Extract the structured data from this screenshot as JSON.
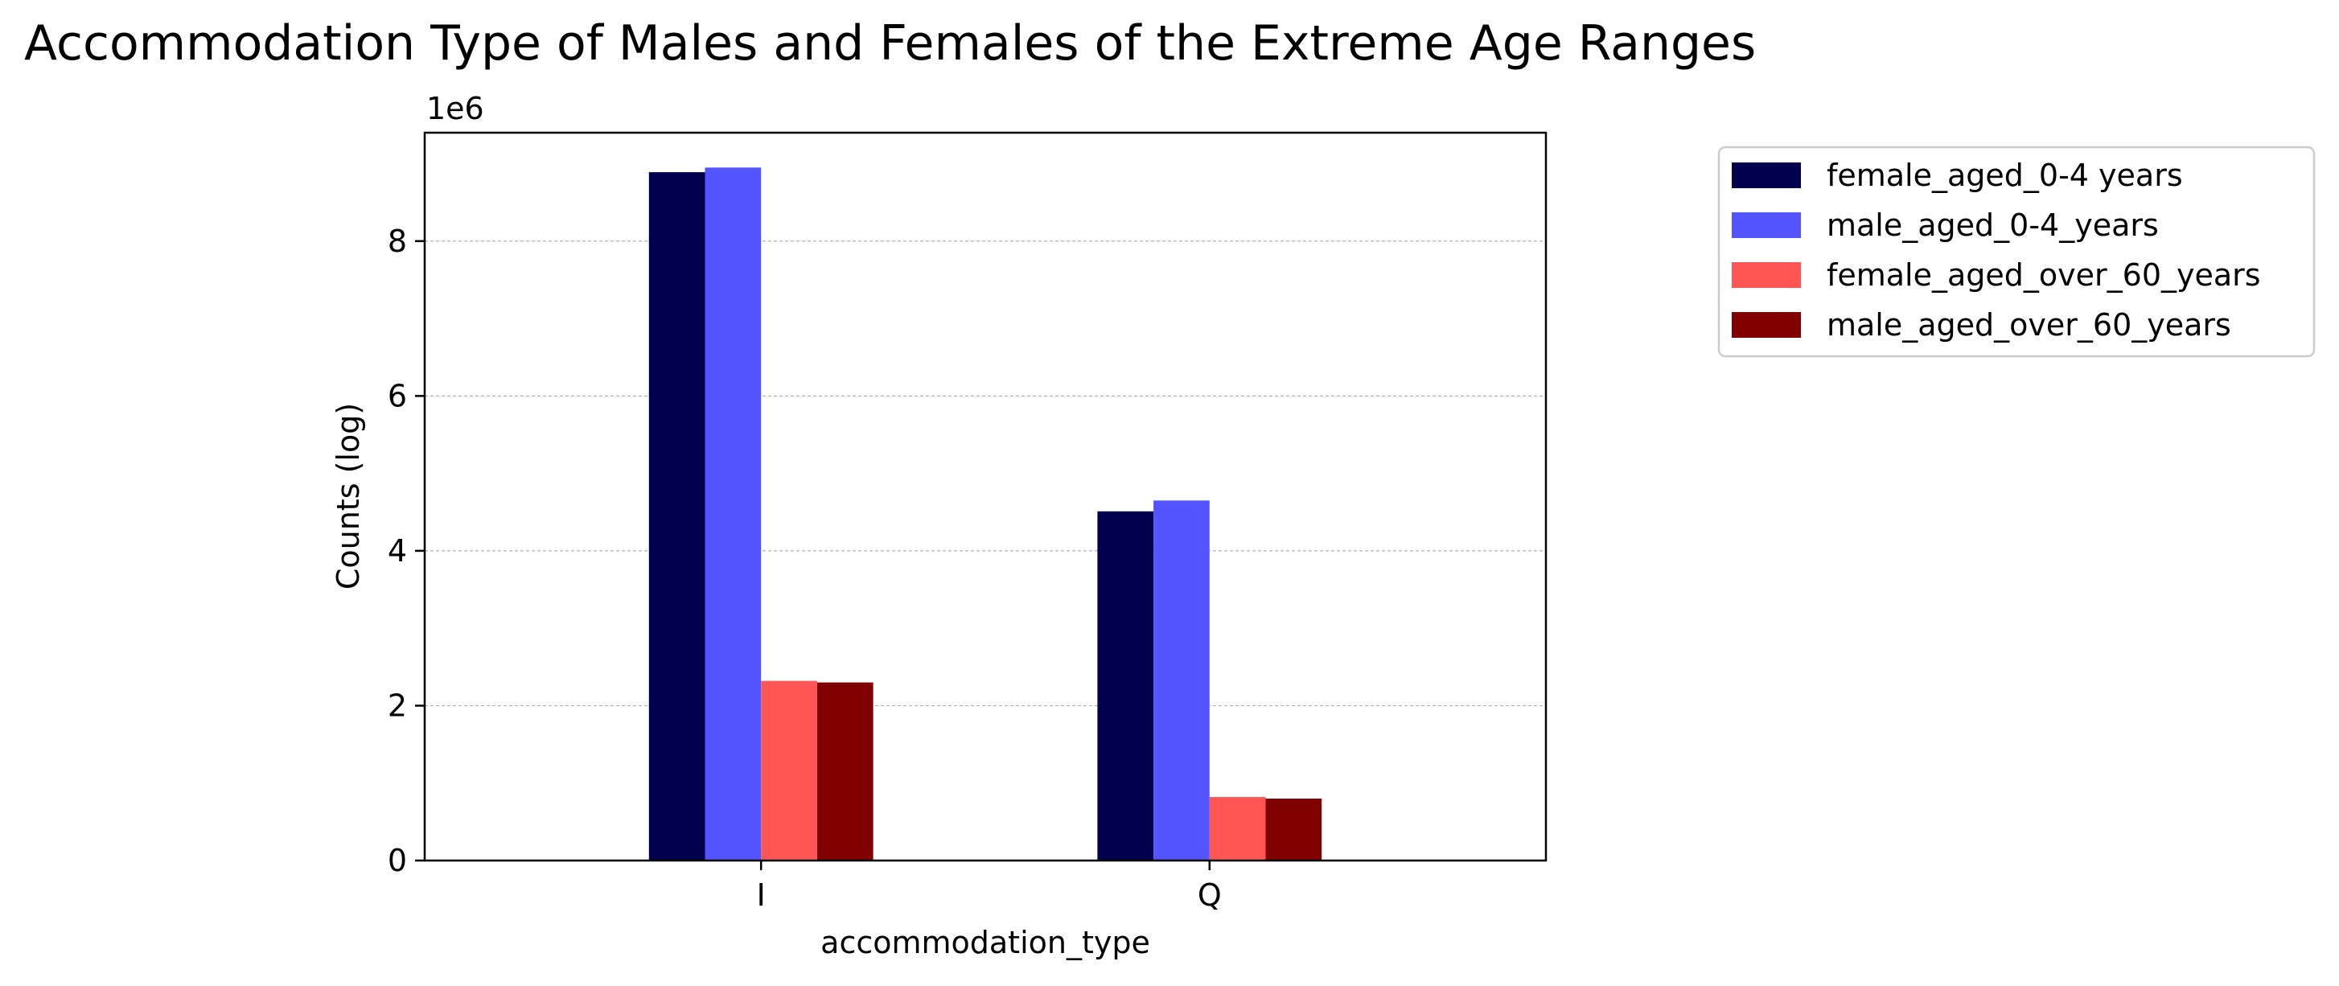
{
  "chart_data": {
    "type": "bar",
    "title": "Accommodation Type of Males and Females of the Extreme Age Ranges",
    "xlabel": "accommodation_type",
    "ylabel": "Counts (log)",
    "y_offset_label": "1e6",
    "y_scale_factor": 1000000,
    "categories": [
      "I",
      "Q"
    ],
    "ylim": [
      0,
      9400000
    ],
    "yticks": [
      0,
      2000000,
      4000000,
      6000000,
      8000000
    ],
    "ytick_labels": [
      "0",
      "2",
      "4",
      "6",
      "8"
    ],
    "grid": "horizontal dashed",
    "legend_position": "upper right, outside plot",
    "series": [
      {
        "name": "female_aged_0-4 years",
        "color": "#00004d",
        "values": [
          8890000,
          4510000
        ]
      },
      {
        "name": "male_aged_0-4_years",
        "color": "#5555ff",
        "values": [
          8950000,
          4650000
        ]
      },
      {
        "name": "female_aged_over_60_years",
        "color": "#ff5555",
        "values": [
          2320000,
          820000
        ]
      },
      {
        "name": "male_aged_over_60_years",
        "color": "#800000",
        "values": [
          2300000,
          800000
        ]
      }
    ]
  }
}
